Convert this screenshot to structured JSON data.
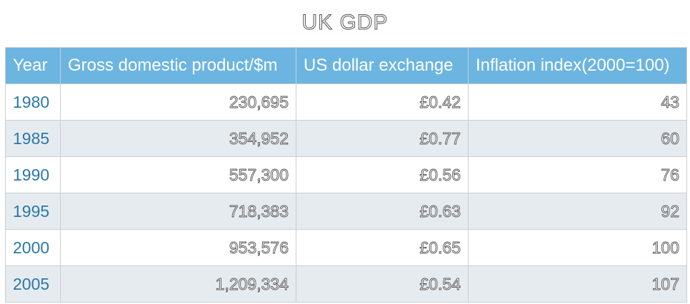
{
  "chart_data": {
    "type": "table",
    "title": "UK GDP",
    "columns": [
      "Year",
      "Gross domestic product/$m",
      "US dollar exchange",
      "Inflation index(2000=100)"
    ],
    "rows": [
      [
        "1980",
        "230,695",
        "£0.42",
        "43"
      ],
      [
        "1985",
        "354,952",
        "£0.77",
        "60"
      ],
      [
        "1990",
        "557,300",
        "£0.56",
        "76"
      ],
      [
        "1995",
        "718,383",
        "£0.63",
        "92"
      ],
      [
        "2000",
        "953,576",
        "£0.65",
        "100"
      ],
      [
        "2005",
        "1,209,334",
        "£0.54",
        "107"
      ]
    ],
    "header_color": "#6cb5e0",
    "stripe_color": "#e6ebf0",
    "year_text_color": "#2a78a8"
  }
}
